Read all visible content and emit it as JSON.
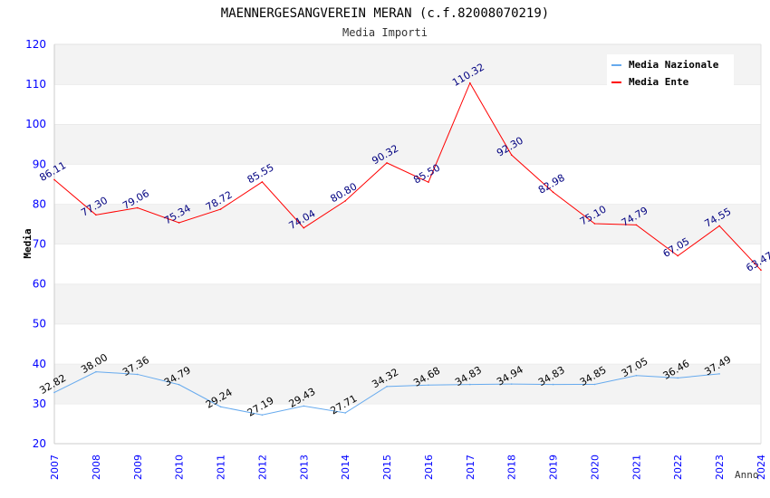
{
  "chart_data": {
    "type": "line",
    "title": "MAENNERGESANGVEREIN MERAN (c.f.82008070219)",
    "subtitle": "Media Importi",
    "xlabel": "Anno",
    "ylabel": "Media",
    "ylim": [
      20,
      120
    ],
    "yticks": [
      "20",
      "30",
      "40",
      "50",
      "60",
      "70",
      "80",
      "90",
      "100",
      "110",
      "120"
    ],
    "x": [
      "2007",
      "2008",
      "2009",
      "2010",
      "2011",
      "2012",
      "2013",
      "2014",
      "2015",
      "2016",
      "2017",
      "2018",
      "2019",
      "2020",
      "2021",
      "2022",
      "2023",
      "2024"
    ],
    "legend_position": "top-right",
    "grid": true,
    "series": [
      {
        "name": "Media Nazionale",
        "color": "#66aaee",
        "label_color": "#000000",
        "values": [
          32.82,
          38.0,
          37.36,
          34.79,
          29.24,
          27.19,
          29.43,
          27.71,
          34.32,
          34.68,
          34.83,
          34.94,
          34.83,
          34.85,
          37.05,
          36.46,
          37.49,
          null
        ],
        "labels": [
          "32.82",
          "38.00",
          "37.36",
          "34.79",
          "29.24",
          "27.19",
          "29.43",
          "27.71",
          "34.32",
          "34.68",
          "34.83",
          "34.94",
          "34.83",
          "34.85",
          "37.05",
          "36.46",
          "37.49",
          null
        ]
      },
      {
        "name": "Media Ente",
        "color": "#ff0000",
        "label_color": "#000080",
        "values": [
          86.11,
          77.3,
          79.06,
          75.34,
          78.72,
          85.55,
          74.04,
          80.8,
          90.32,
          85.5,
          110.32,
          92.3,
          82.98,
          75.1,
          74.79,
          67.05,
          74.55,
          63.47
        ],
        "labels": [
          "86.11",
          "77.30",
          "79.06",
          "75.34",
          "78.72",
          "85.55",
          "74.04",
          "80.80",
          "90.32",
          "85.50",
          "110.32",
          "92.30",
          "82.98",
          "75.10",
          "74.79",
          "67.05",
          "74.55",
          "63.47"
        ]
      }
    ]
  }
}
